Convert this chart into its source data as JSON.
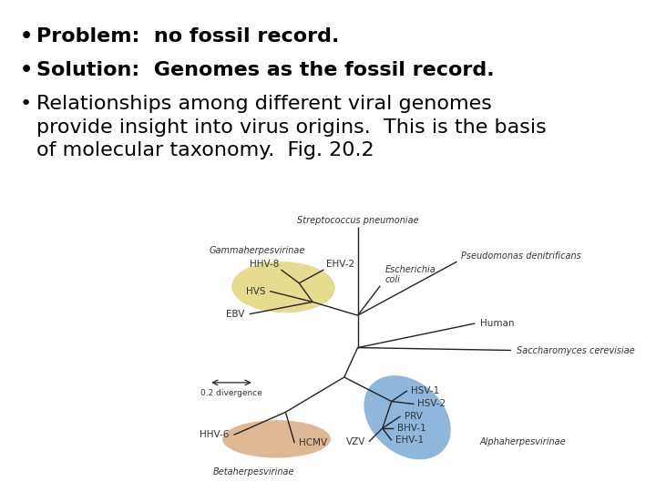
{
  "background_color": "#ffffff",
  "bullet1_bold": "Problem:  no fossil record.",
  "bullet2_bold": "Solution:  Genomes as the fossil record.",
  "bullet3_normal": "Relationships among different viral genomes\nprovide insight into virus origins.  This is the basis\nof molecular taxonomy.  Fig. 20.2",
  "image_bg": "#dde2e8",
  "tree_line_color": "#222222",
  "yellow_blob_color": "#dfd06a",
  "blue_blob_color": "#6a9ed0",
  "orange_blob_color": "#d4a070",
  "text_color": "#000000",
  "label_color": "#333333",
  "bullet_fontsize": 16,
  "tree_label_fontsize": 7.5,
  "tree_label_italic_fontsize": 7.0
}
